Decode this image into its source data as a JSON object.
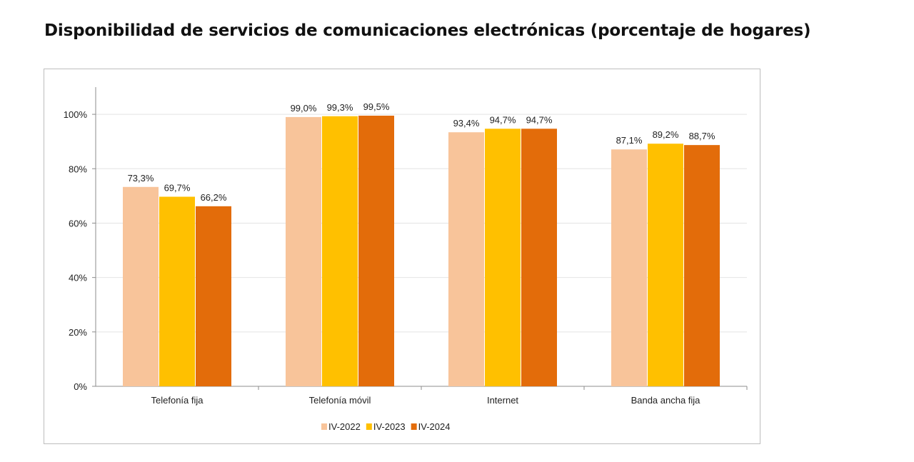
{
  "page": {
    "title": "Disponibilidad de servicios de comunicaciones electrónicas (porcentaje de hogares)"
  },
  "chart_data": {
    "type": "bar",
    "title": "",
    "xlabel": "",
    "ylabel": "",
    "ylim": [
      0,
      110
    ],
    "yticks": [
      0,
      20,
      40,
      60,
      80,
      100
    ],
    "ytick_labels": [
      "0%",
      "20%",
      "40%",
      "60%",
      "80%",
      "100%"
    ],
    "grid": true,
    "legend_position": "bottom",
    "categories": [
      "Telefonía fija",
      "Telefonía móvil",
      "Internet",
      "Banda ancha fija"
    ],
    "series": [
      {
        "name": "IV-2022",
        "color": "#F8C49A",
        "values": [
          73.3,
          99.0,
          93.4,
          87.1
        ],
        "labels": [
          "73,3%",
          "99,0%",
          "93,4%",
          "87,1%"
        ]
      },
      {
        "name": "IV-2023",
        "color": "#FFC000",
        "values": [
          69.7,
          99.3,
          94.7,
          89.2
        ],
        "labels": [
          "69,7%",
          "99,3%",
          "94,7%",
          "89,2%"
        ]
      },
      {
        "name": "IV-2024",
        "color": "#E36C0A",
        "values": [
          66.2,
          99.5,
          94.7,
          88.7
        ],
        "labels": [
          "66,2%",
          "99,5%",
          "94,7%",
          "88,7%"
        ]
      }
    ]
  }
}
